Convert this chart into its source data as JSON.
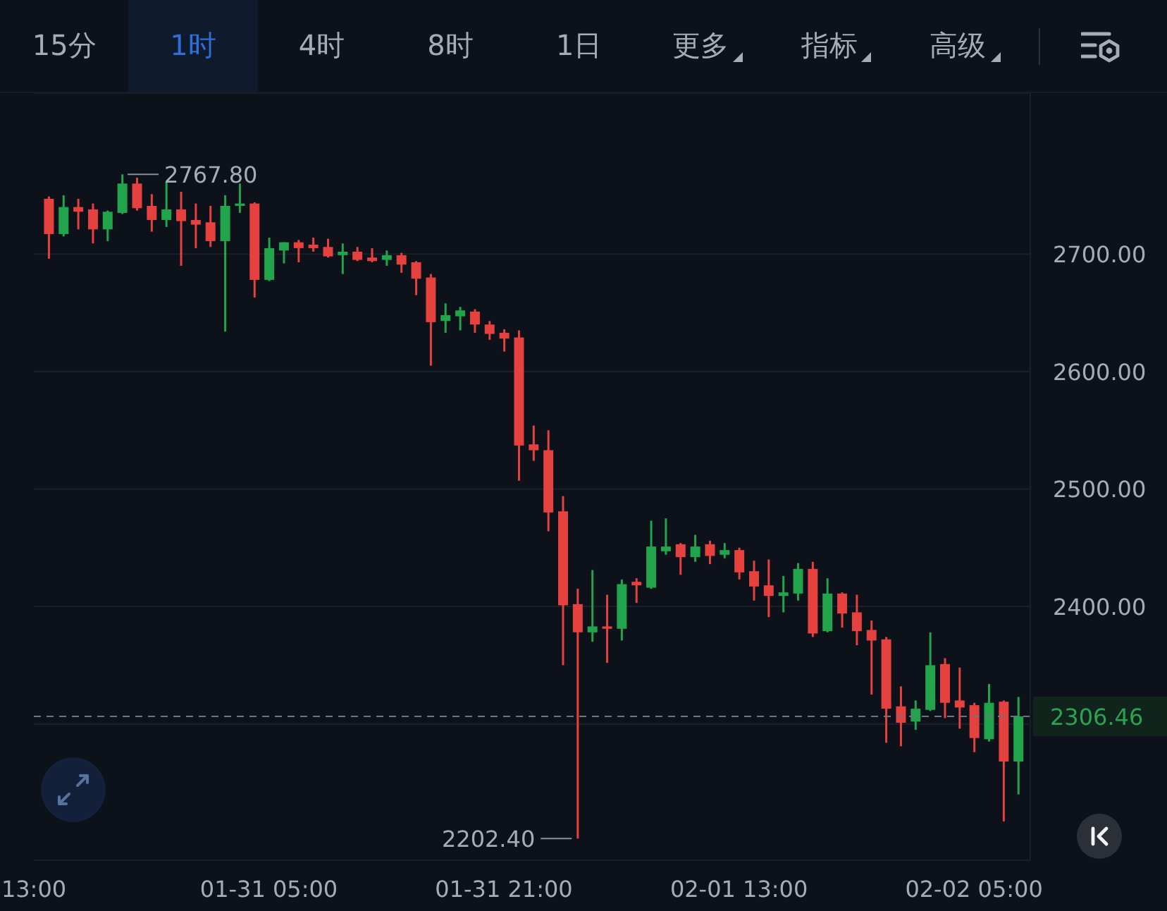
{
  "chart_data": {
    "type": "candlestick",
    "annotations": [
      "15分",
      "1时",
      "4时",
      "8时",
      "1日",
      "更多",
      "指标",
      "高级",
      {
        "text": "2767.80",
        "x": "--01-30T19:00",
        "y": 2767.8
      },
      {
        "text": "2202.40",
        "x": "--02-01T02:00",
        "y": 2202.4
      }
    ],
    "x": [
      "--01-30T14:00",
      "--01-30T15:00",
      "--01-30T16:00",
      "--01-30T17:00",
      "--01-30T18:00",
      "--01-30T19:00",
      "--01-30T20:00",
      "--01-30T21:00",
      "--01-30T22:00",
      "--01-30T23:00",
      "--01-31T00:00",
      "--01-31T01:00",
      "--01-31T02:00",
      "--01-31T03:00",
      "--01-31T04:00",
      "--01-31T05:00",
      "--01-31T06:00",
      "--01-31T07:00",
      "--01-31T08:00",
      "--01-31T09:00",
      "--01-31T10:00",
      "--01-31T11:00",
      "--01-31T12:00",
      "--01-31T13:00",
      "--01-31T14:00",
      "--01-31T15:00",
      "--01-31T16:00",
      "--01-31T17:00",
      "--01-31T18:00",
      "--01-31T19:00",
      "--01-31T20:00",
      "--01-31T21:00",
      "--01-31T22:00",
      "--01-31T23:00",
      "--02-01T00:00",
      "--02-01T01:00",
      "--02-01T02:00",
      "--02-01T03:00",
      "--02-01T04:00",
      "--02-01T05:00",
      "--02-01T06:00",
      "--02-01T07:00",
      "--02-01T08:00",
      "--02-01T09:00",
      "--02-01T10:00",
      "--02-01T11:00",
      "--02-01T12:00",
      "--02-01T13:00",
      "--02-01T14:00",
      "--02-01T15:00",
      "--02-01T16:00",
      "--02-01T17:00",
      "--02-01T18:00",
      "--02-01T19:00",
      "--02-01T20:00",
      "--02-01T21:00",
      "--02-01T22:00",
      "--02-01T23:00",
      "--02-02T00:00",
      "--02-02T01:00",
      "--02-02T02:00",
      "--02-02T03:00",
      "--02-02T04:00",
      "--02-02T05:00",
      "--02-02T06:00",
      "--02-02T07:00",
      "--02-02T08:00"
    ],
    "ohlc": [
      [
        2747,
        2749,
        2696,
        2717
      ],
      [
        2717,
        2750,
        2715,
        2740
      ],
      [
        2740,
        2747,
        2721,
        2736
      ],
      [
        2738,
        2743,
        2709,
        2721
      ],
      [
        2721,
        2737,
        2711,
        2736
      ],
      [
        2735,
        2767.8,
        2734,
        2760
      ],
      [
        2760,
        2765,
        2737,
        2739
      ],
      [
        2741,
        2751,
        2719,
        2729
      ],
      [
        2729,
        2762,
        2723,
        2738
      ],
      [
        2738,
        2753,
        2690,
        2728
      ],
      [
        2729,
        2743,
        2705,
        2725
      ],
      [
        2727,
        2741,
        2706,
        2711
      ],
      [
        2711,
        2750,
        2634,
        2741
      ],
      [
        2741,
        2760,
        2735,
        2743
      ],
      [
        2743,
        2744,
        2663,
        2678
      ],
      [
        2678,
        2714,
        2677,
        2705
      ],
      [
        2703,
        2710,
        2692,
        2710
      ],
      [
        2710,
        2712,
        2693,
        2705
      ],
      [
        2708,
        2714,
        2702,
        2705
      ],
      [
        2706,
        2713,
        2697,
        2698
      ],
      [
        2699,
        2709,
        2683,
        2702
      ],
      [
        2702,
        2706,
        2694,
        2695
      ],
      [
        2697,
        2705,
        2693,
        2694
      ],
      [
        2695,
        2703,
        2690,
        2699
      ],
      [
        2699,
        2701,
        2684,
        2691
      ],
      [
        2693,
        2694,
        2665,
        2679
      ],
      [
        2680,
        2683,
        2605,
        2642
      ],
      [
        2643,
        2658,
        2633,
        2648
      ],
      [
        2647,
        2655,
        2635,
        2652
      ],
      [
        2651,
        2653,
        2633,
        2640
      ],
      [
        2640,
        2643,
        2627,
        2632
      ],
      [
        2633,
        2636,
        2617,
        2628
      ],
      [
        2629,
        2635,
        2507,
        2537
      ],
      [
        2538,
        2554,
        2524,
        2533
      ],
      [
        2533,
        2550,
        2464,
        2480
      ],
      [
        2481,
        2494,
        2350,
        2401
      ],
      [
        2402,
        2415,
        2202.4,
        2378
      ],
      [
        2378,
        2431,
        2370,
        2383
      ],
      [
        2383,
        2410,
        2352,
        2381
      ],
      [
        2381,
        2423,
        2371,
        2419
      ],
      [
        2421,
        2424,
        2403,
        2418
      ],
      [
        2416,
        2473,
        2415,
        2451
      ],
      [
        2447,
        2475,
        2444,
        2451
      ],
      [
        2453,
        2454,
        2427,
        2442
      ],
      [
        2442,
        2461,
        2438,
        2451
      ],
      [
        2453,
        2456,
        2436,
        2443
      ],
      [
        2444,
        2454,
        2441,
        2448
      ],
      [
        2448,
        2450,
        2423,
        2429
      ],
      [
        2430,
        2439,
        2405,
        2417
      ],
      [
        2418,
        2440,
        2391,
        2409
      ],
      [
        2409,
        2426,
        2395,
        2412
      ],
      [
        2411,
        2437,
        2405,
        2432
      ],
      [
        2432,
        2438,
        2374,
        2377
      ],
      [
        2379,
        2424,
        2378,
        2411
      ],
      [
        2411,
        2412,
        2382,
        2394
      ],
      [
        2395,
        2410,
        2367,
        2379
      ],
      [
        2380,
        2388,
        2325,
        2371
      ],
      [
        2372,
        2374,
        2284,
        2313
      ],
      [
        2315,
        2332,
        2281,
        2301
      ],
      [
        2302,
        2320,
        2295,
        2313
      ],
      [
        2312,
        2378,
        2311,
        2350
      ],
      [
        2351,
        2356,
        2305,
        2318
      ],
      [
        2320,
        2348,
        2296,
        2314
      ],
      [
        2316,
        2318,
        2276,
        2288
      ],
      [
        2287,
        2334,
        2285,
        2318
      ],
      [
        2319,
        2320,
        2217,
        2268
      ],
      [
        2268,
        2323,
        2240,
        2306.46
      ]
    ],
    "colors": [
      "#e5413f",
      "#21a44b",
      "#e5413f",
      "#e5413f",
      "#21a44b",
      "#21a44b",
      "#e5413f",
      "#e5413f",
      "#21a44b",
      "#e5413f",
      "#e5413f",
      "#e5413f",
      "#21a44b",
      "#21a44b",
      "#e5413f",
      "#21a44b",
      "#21a44b",
      "#e5413f",
      "#e5413f",
      "#e5413f",
      "#21a44b",
      "#e5413f",
      "#e5413f",
      "#21a44b",
      "#e5413f",
      "#e5413f",
      "#e5413f",
      "#21a44b",
      "#21a44b",
      "#e5413f",
      "#e5413f",
      "#e5413f",
      "#e5413f",
      "#e5413f",
      "#e5413f",
      "#e5413f",
      "#e5413f",
      "#21a44b",
      "#e5413f",
      "#21a44b",
      "#e5413f",
      "#21a44b",
      "#21a44b",
      "#e5413f",
      "#21a44b",
      "#e5413f",
      "#21a44b",
      "#e5413f",
      "#e5413f",
      "#e5413f",
      "#21a44b",
      "#21a44b",
      "#e5413f",
      "#21a44b",
      "#e5413f",
      "#e5413f",
      "#e5413f",
      "#e5413f",
      "#e5413f",
      "#21a44b",
      "#21a44b",
      "#e5413f",
      "#e5413f",
      "#e5413f",
      "#21a44b",
      "#e5413f",
      "#21a44b"
    ],
    "xlim": [
      "--01-30T13:00",
      "--02-02T08:50"
    ],
    "xticks": [
      {
        "value": "--01-30T13:00",
        "label": "13:00"
      },
      {
        "value": "--01-31T05:00",
        "label": "01-31 05:00"
      },
      {
        "value": "--01-31T21:00",
        "label": "01-31 21:00"
      },
      {
        "value": "--02-01T13:00",
        "label": "02-01 13:00"
      },
      {
        "value": "--02-02T05:00",
        "label": "02-02 05:00"
      }
    ],
    "ylim": [
      2184,
      2837
    ],
    "yticks": [
      {
        "value": 2300,
        "label": null
      },
      {
        "value": 2400,
        "label": "2400.00"
      },
      {
        "value": 2500,
        "label": "2500.00"
      },
      {
        "value": 2600,
        "label": "2600.00"
      },
      {
        "value": 2700,
        "label": "2700.00"
      }
    ],
    "grid": "y",
    "ref_lines": [
      {
        "axis": "y",
        "value": 2306.46,
        "label": "2306.46",
        "color": "#6f7580",
        "line_style": "dashed"
      }
    ]
  }
}
